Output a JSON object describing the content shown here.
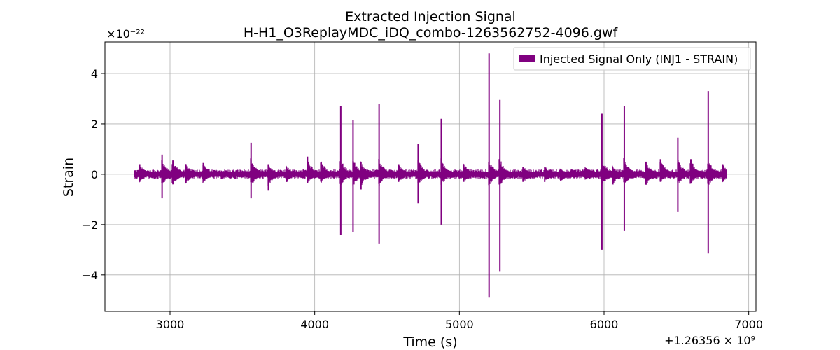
{
  "chart_data": {
    "type": "line",
    "title": "Extracted Injection Signal",
    "subtitle": "H-H1_O3ReplayMDC_iDQ_combo-1263562752-4096.gwf",
    "xlabel": "Time (s)",
    "ylabel": "Strain",
    "x_offset_label": "+1.26356 × 10⁹",
    "y_scale_label": "×10⁻²²",
    "xlim": [
      2550,
      7050
    ],
    "ylim": [
      -5.45,
      5.25
    ],
    "x_ticks": [
      3000,
      4000,
      5000,
      6000,
      7000
    ],
    "x_tick_labels": [
      "3000",
      "4000",
      "5000",
      "6000",
      "7000"
    ],
    "y_ticks": [
      -4,
      -2,
      0,
      2,
      4
    ],
    "y_tick_labels": [
      "−4",
      "−2",
      "0",
      "2",
      "4"
    ],
    "grid": true,
    "legend_position": "top-right",
    "series": [
      {
        "name": "Injected Signal Only (INJ1 - STRAIN)",
        "color": "#800080",
        "x_range": [
          2752,
          6848
        ],
        "baseline_amplitude": 0.15,
        "glitches": [
          {
            "x": 2790,
            "high": 0.4,
            "low": -0.3
          },
          {
            "x": 2945,
            "high": 0.78,
            "low": -0.95
          },
          {
            "x": 3020,
            "high": 0.55,
            "low": -0.4
          },
          {
            "x": 3110,
            "high": 0.4,
            "low": -0.35
          },
          {
            "x": 3230,
            "high": 0.45,
            "low": -0.3
          },
          {
            "x": 3560,
            "high": 1.25,
            "low": -0.95
          },
          {
            "x": 3680,
            "high": 0.4,
            "low": -0.65
          },
          {
            "x": 3805,
            "high": 0.3,
            "low": -0.3
          },
          {
            "x": 3950,
            "high": 0.7,
            "low": -0.35
          },
          {
            "x": 4045,
            "high": 0.5,
            "low": -0.3
          },
          {
            "x": 4180,
            "high": 2.7,
            "low": -2.4
          },
          {
            "x": 4265,
            "high": 2.15,
            "low": -2.3
          },
          {
            "x": 4320,
            "high": 0.5,
            "low": -0.6
          },
          {
            "x": 4445,
            "high": 2.8,
            "low": -2.75
          },
          {
            "x": 4580,
            "high": 0.4,
            "low": -0.3
          },
          {
            "x": 4715,
            "high": 1.2,
            "low": -1.15
          },
          {
            "x": 4875,
            "high": 2.2,
            "low": -2.0
          },
          {
            "x": 5030,
            "high": 0.4,
            "low": -0.3
          },
          {
            "x": 5205,
            "high": 4.8,
            "low": -4.9
          },
          {
            "x": 5280,
            "high": 2.95,
            "low": -3.85
          },
          {
            "x": 5440,
            "high": 0.3,
            "low": -0.3
          },
          {
            "x": 5590,
            "high": 0.3,
            "low": -0.3
          },
          {
            "x": 5700,
            "high": 0.2,
            "low": -0.25
          },
          {
            "x": 5875,
            "high": 0.25,
            "low": -0.2
          },
          {
            "x": 5985,
            "high": 2.4,
            "low": -3.0
          },
          {
            "x": 6060,
            "high": 0.3,
            "low": -0.4
          },
          {
            "x": 6140,
            "high": 2.7,
            "low": -2.25
          },
          {
            "x": 6290,
            "high": 0.5,
            "low": -0.4
          },
          {
            "x": 6390,
            "high": 0.6,
            "low": -0.3
          },
          {
            "x": 6510,
            "high": 1.45,
            "low": -1.5
          },
          {
            "x": 6600,
            "high": 0.6,
            "low": -0.35
          },
          {
            "x": 6720,
            "high": 3.3,
            "low": -3.15
          },
          {
            "x": 6820,
            "high": 0.4,
            "low": -0.3
          }
        ]
      }
    ]
  }
}
